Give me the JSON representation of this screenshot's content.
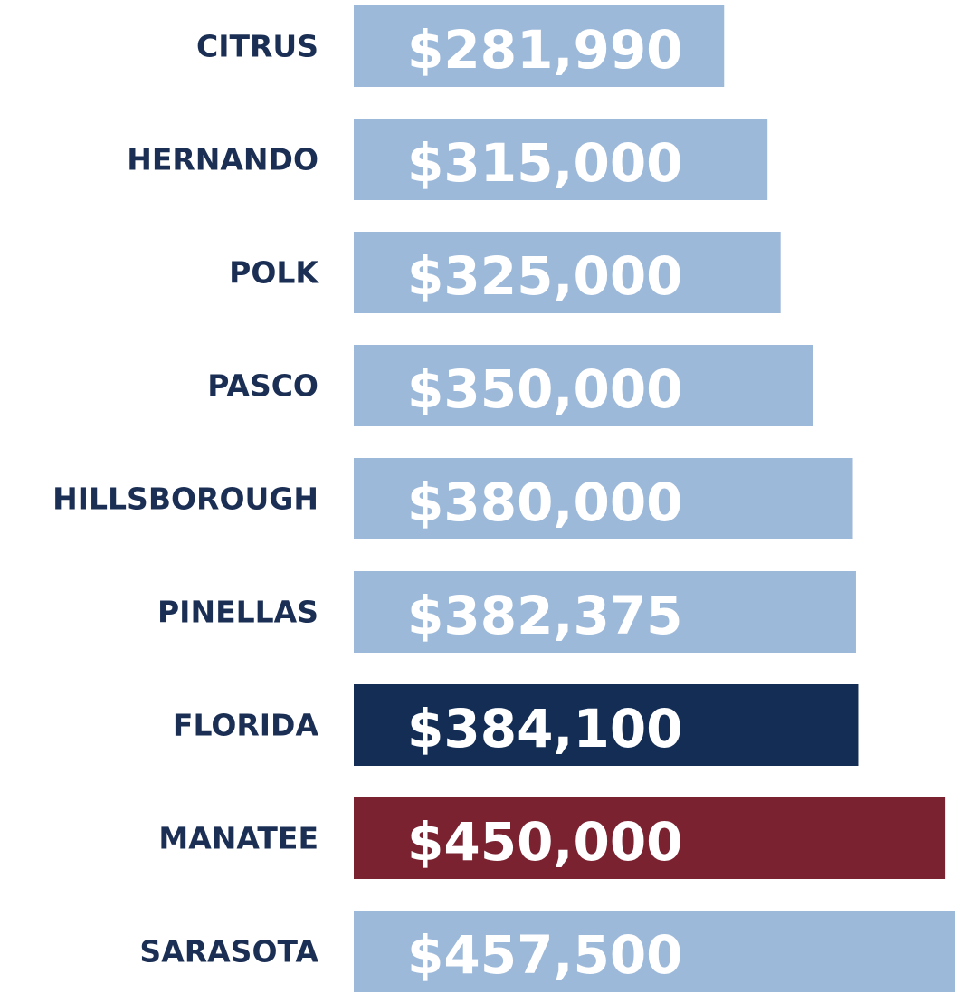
{
  "chart_data": {
    "type": "bar",
    "orientation": "horizontal",
    "categories": [
      "CITRUS",
      "HERNANDO",
      "POLK",
      "PASCO",
      "HILLSBOROUGH",
      "PINELLAS",
      "FLORIDA",
      "MANATEE",
      "SARASOTA"
    ],
    "values": [
      281990,
      315000,
      325000,
      350000,
      380000,
      382375,
      384100,
      450000,
      457500
    ],
    "value_labels": [
      "$281,990",
      "$315,000",
      "$325,000",
      "$350,000",
      "$380,000",
      "$382,375",
      "$384,100",
      "$450,000",
      "$457,500"
    ],
    "colors": [
      "#9db9d9",
      "#9db9d9",
      "#9db9d9",
      "#9db9d9",
      "#9db9d9",
      "#9db9d9",
      "#142d55",
      "#7a2230",
      "#9db9d9"
    ]
  }
}
